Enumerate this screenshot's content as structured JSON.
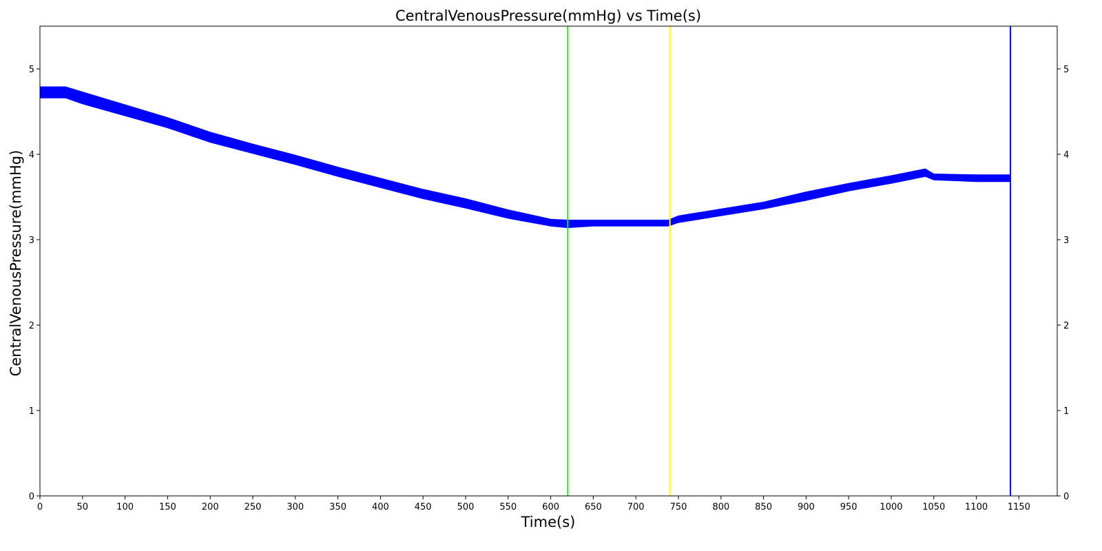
{
  "chart_data": {
    "type": "line",
    "title": "CentralVenousPressure(mmHg) vs Time(s)",
    "xlabel": "Time(s)",
    "ylabel": "CentralVenousPressure(mmHg)",
    "xlim": [
      0,
      1195
    ],
    "ylim": [
      0,
      5.5
    ],
    "xticks": [
      0,
      50,
      100,
      150,
      200,
      250,
      300,
      350,
      400,
      450,
      500,
      550,
      600,
      650,
      700,
      750,
      800,
      850,
      900,
      950,
      1000,
      1050,
      1100,
      1150
    ],
    "yticks": [
      0,
      1,
      2,
      3,
      4,
      5
    ],
    "right_yticks": true,
    "grid": false,
    "series": [
      {
        "color": "#0000ff",
        "band_low": [
          [
            0,
            4.66
          ],
          [
            30,
            4.66
          ],
          [
            50,
            4.59
          ],
          [
            100,
            4.45
          ],
          [
            150,
            4.31
          ],
          [
            200,
            4.14
          ],
          [
            250,
            4.01
          ],
          [
            300,
            3.88
          ],
          [
            350,
            3.74
          ],
          [
            400,
            3.61
          ],
          [
            450,
            3.48
          ],
          [
            500,
            3.37
          ],
          [
            550,
            3.25
          ],
          [
            600,
            3.16
          ],
          [
            620,
            3.14
          ],
          [
            650,
            3.16
          ],
          [
            700,
            3.16
          ],
          [
            738,
            3.16
          ],
          [
            750,
            3.2
          ],
          [
            800,
            3.28
          ],
          [
            850,
            3.36
          ],
          [
            900,
            3.46
          ],
          [
            950,
            3.57
          ],
          [
            1000,
            3.66
          ],
          [
            1040,
            3.74
          ],
          [
            1050,
            3.7
          ],
          [
            1100,
            3.68
          ],
          [
            1140,
            3.68
          ]
        ],
        "band_high": [
          [
            0,
            4.79
          ],
          [
            30,
            4.79
          ],
          [
            50,
            4.73
          ],
          [
            100,
            4.58
          ],
          [
            150,
            4.43
          ],
          [
            200,
            4.26
          ],
          [
            250,
            4.12
          ],
          [
            300,
            3.99
          ],
          [
            350,
            3.85
          ],
          [
            400,
            3.72
          ],
          [
            450,
            3.59
          ],
          [
            500,
            3.48
          ],
          [
            550,
            3.35
          ],
          [
            600,
            3.24
          ],
          [
            620,
            3.23
          ],
          [
            650,
            3.23
          ],
          [
            700,
            3.23
          ],
          [
            738,
            3.23
          ],
          [
            750,
            3.28
          ],
          [
            800,
            3.36
          ],
          [
            850,
            3.44
          ],
          [
            900,
            3.56
          ],
          [
            950,
            3.66
          ],
          [
            1000,
            3.75
          ],
          [
            1040,
            3.83
          ],
          [
            1050,
            3.77
          ],
          [
            1100,
            3.76
          ],
          [
            1140,
            3.76
          ]
        ]
      }
    ],
    "vlines": [
      {
        "x": 620,
        "color": "#00ff00"
      },
      {
        "x": 740,
        "color": "#ffff00"
      },
      {
        "x": 1140,
        "color": "#0000ff"
      }
    ]
  }
}
